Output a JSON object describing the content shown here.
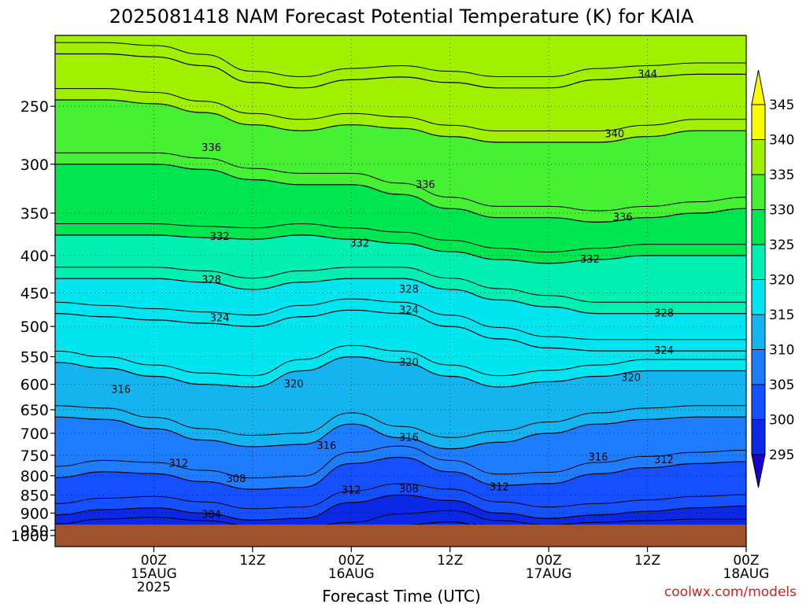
{
  "page": {
    "title": "2025081418 NAM Forecast Potential Temperature (K) for KAIA",
    "xlabel": "Forecast Time (UTC)",
    "credit": "coolwx.com/models"
  },
  "chart_data": {
    "type": "heatmap",
    "title": "2025081418 NAM Forecast Potential Temperature (K) for KAIA",
    "xlabel": "Forecast Time (UTC)",
    "ylabel": "",
    "x_range_hours": [
      -6,
      78
    ],
    "y_range_hpa": [
      1000,
      200
    ],
    "y_scale": "log",
    "grid": true,
    "y_ticks": [
      250,
      300,
      350,
      400,
      450,
      500,
      550,
      600,
      650,
      700,
      750,
      800,
      850,
      900,
      950,
      1000
    ],
    "x_ticks": [
      {
        "hour": 6,
        "l1": "00Z",
        "l2": "15AUG",
        "l3": "2025"
      },
      {
        "hour": 18,
        "l1": "12Z",
        "l2": "",
        "l3": ""
      },
      {
        "hour": 30,
        "l1": "00Z",
        "l2": "16AUG",
        "l3": ""
      },
      {
        "hour": 42,
        "l1": "12Z",
        "l2": "",
        "l3": ""
      },
      {
        "hour": 54,
        "l1": "00Z",
        "l2": "17AUG",
        "l3": ""
      },
      {
        "hour": 66,
        "l1": "12Z",
        "l2": "",
        "l3": ""
      },
      {
        "hour": 78,
        "l1": "00Z",
        "l2": "18AUG",
        "l3": ""
      }
    ],
    "colorbar": {
      "levels": [
        295,
        300,
        305,
        310,
        315,
        320,
        325,
        330,
        335,
        340,
        345
      ],
      "colors": [
        "#1a00c8",
        "#0a28e6",
        "#1450ff",
        "#1e7cff",
        "#14b4f0",
        "#00e6f0",
        "#00f0b4",
        "#00e650",
        "#46f032",
        "#a0f000",
        "#fafa00"
      ],
      "below_color": "#1a00c8",
      "above_color": "#fafa00"
    },
    "ground_color": "#a0522d",
    "contours": [
      {
        "theta": 304,
        "p": [
          965,
          950,
          945,
          955,
          970,
          975,
          960,
          935,
          925,
          955,
          968,
          960,
          955,
          950,
          950
        ]
      },
      {
        "theta": 308,
        "p": [
          905,
          890,
          885,
          900,
          920,
          915,
          870,
          850,
          865,
          900,
          915,
          905,
          895,
          885,
          880
        ]
      },
      {
        "theta": 312,
        "p": [
          805,
          790,
          795,
          815,
          835,
          830,
          770,
          755,
          790,
          825,
          820,
          795,
          780,
          770,
          765
        ]
      },
      {
        "theta": 316,
        "p": [
          665,
          670,
          690,
          715,
          730,
          725,
          680,
          710,
          735,
          720,
          700,
          680,
          670,
          665,
          665
        ]
      },
      {
        "theta": 320,
        "p": [
          560,
          570,
          585,
          600,
          605,
          575,
          550,
          560,
          585,
          605,
          595,
          585,
          575,
          575,
          575
        ]
      },
      {
        "theta": 324,
        "p": [
          480,
          485,
          490,
          495,
          500,
          485,
          475,
          480,
          500,
          520,
          535,
          540,
          540,
          540,
          540
        ]
      },
      {
        "theta": 328,
        "p": [
          430,
          430,
          430,
          435,
          445,
          435,
          430,
          430,
          445,
          460,
          470,
          480,
          480,
          480,
          480
        ]
      },
      {
        "theta": 332,
        "p": [
          375,
          375,
          375,
          378,
          380,
          375,
          380,
          385,
          395,
          405,
          410,
          405,
          400,
          400,
          400
        ]
      },
      {
        "theta": 336,
        "p": [
          300,
          300,
          300,
          305,
          315,
          320,
          320,
          330,
          345,
          355,
          355,
          360,
          355,
          350,
          345
        ]
      },
      {
        "theta": 340,
        "p": [
          245,
          245,
          248,
          255,
          265,
          270,
          265,
          268,
          275,
          280,
          280,
          280,
          275,
          270,
          270
        ]
      },
      {
        "theta": 344,
        "p": [
          212,
          212,
          214,
          220,
          232,
          236,
          230,
          228,
          232,
          236,
          236,
          230,
          228,
          226,
          226
        ]
      }
    ],
    "contour_labels": [
      {
        "text": "344",
        "hour": 66,
        "p": 226
      },
      {
        "text": "340",
        "hour": 62,
        "p": 273
      },
      {
        "text": "336",
        "hour": 13,
        "p": 285
      },
      {
        "text": "336",
        "hour": 39,
        "p": 320
      },
      {
        "text": "336",
        "hour": 63,
        "p": 355
      },
      {
        "text": "332",
        "hour": 14,
        "p": 377
      },
      {
        "text": "332",
        "hour": 31,
        "p": 385
      },
      {
        "text": "332",
        "hour": 59,
        "p": 405
      },
      {
        "text": "328",
        "hour": 13,
        "p": 432
      },
      {
        "text": "328",
        "hour": 37,
        "p": 445
      },
      {
        "text": "328",
        "hour": 68,
        "p": 480
      },
      {
        "text": "324",
        "hour": 14,
        "p": 487
      },
      {
        "text": "324",
        "hour": 37,
        "p": 475
      },
      {
        "text": "324",
        "hour": 68,
        "p": 540
      },
      {
        "text": "320",
        "hour": 23,
        "p": 600
      },
      {
        "text": "320",
        "hour": 37,
        "p": 560
      },
      {
        "text": "320",
        "hour": 64,
        "p": 588
      },
      {
        "text": "316",
        "hour": 2,
        "p": 610
      },
      {
        "text": "316",
        "hour": 27,
        "p": 728
      },
      {
        "text": "316",
        "hour": 37,
        "p": 710
      },
      {
        "text": "316",
        "hour": 60,
        "p": 755
      },
      {
        "text": "312",
        "hour": 9,
        "p": 770
      },
      {
        "text": "312",
        "hour": 30,
        "p": 838
      },
      {
        "text": "312",
        "hour": 48,
        "p": 830
      },
      {
        "text": "312",
        "hour": 68,
        "p": 762
      },
      {
        "text": "308",
        "hour": 16,
        "p": 808
      },
      {
        "text": "308",
        "hour": 37,
        "p": 835
      },
      {
        "text": "308",
        "hour": 60,
        "p": 948
      },
      {
        "text": "304",
        "hour": 13,
        "p": 905
      },
      {
        "text": "304",
        "hour": 45,
        "p": 945
      }
    ]
  }
}
